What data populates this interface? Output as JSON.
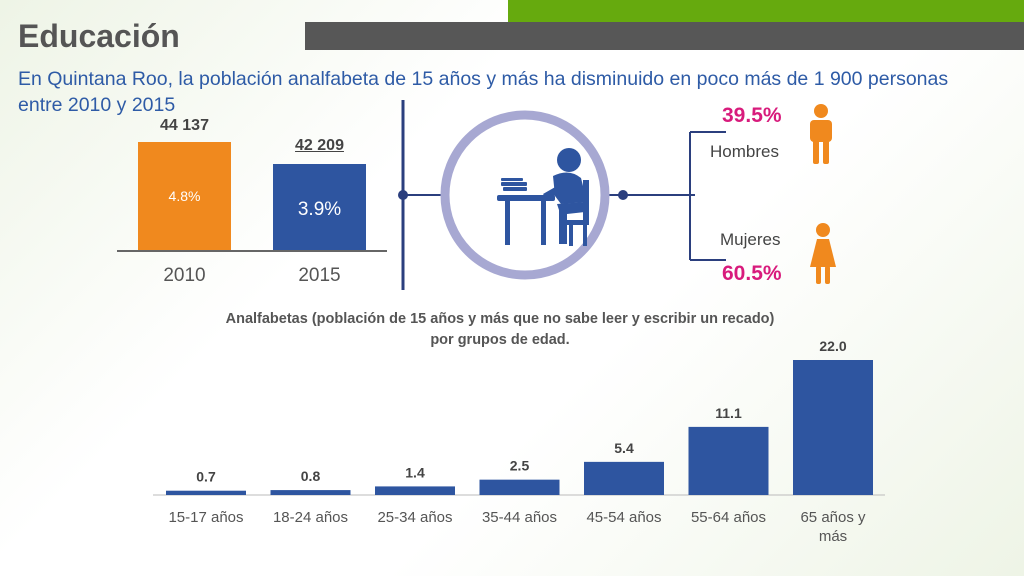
{
  "title": "Educación",
  "subtitle": "En Quintana Roo, la población analfabeta  de 15 años y más ha disminuido en poco más de 1 900 personas entre 2010 y 2015",
  "colors": {
    "orange": "#f0891e",
    "blue": "#2e55a0",
    "pink": "#d81b7c",
    "green": "#66aa0e",
    "gray": "#575757",
    "circle": "#a7a8d2"
  },
  "top_chart": {
    "type": "bar",
    "categories": [
      "2010",
      "2015"
    ],
    "totals": [
      "44 137",
      "42 209"
    ],
    "percent_labels": [
      "4.8%",
      "3.9%"
    ],
    "values": [
      44137,
      42209
    ]
  },
  "gender": {
    "men_label": "Hombres",
    "men_pct": "39.5%",
    "women_label": "Mujeres",
    "women_pct": "60.5%"
  },
  "icons": {
    "student": "student-at-desk-icon",
    "man": "man-icon",
    "woman": "woman-icon"
  },
  "caption_line1": "Analfabetas (población de 15 años y más que no sabe leer y escribir un recado)",
  "caption_line2": "por grupos de edad.",
  "chart_data": {
    "type": "bar",
    "title": "Analfabetas (población de 15 años y más que no sabe leer y escribir un recado) por grupos de edad.",
    "categories": [
      "15-17 años",
      "18-24 años",
      "25-34 años",
      "35-44 años",
      "45-54 años",
      "55-64 años",
      "65 años y más"
    ],
    "values": [
      0.7,
      0.8,
      1.4,
      2.5,
      5.4,
      11.1,
      22.0
    ],
    "value_labels": [
      "0.7",
      "0.8",
      "1.4",
      "2.5",
      "5.4",
      "11.1",
      "22.0"
    ],
    "ylim": [
      0,
      22
    ],
    "grid": false,
    "legend": "none"
  }
}
